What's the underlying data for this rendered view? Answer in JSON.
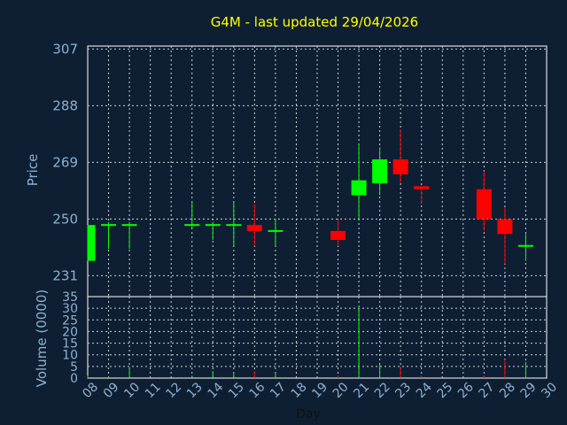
{
  "chart_data": {
    "type": "candlestick",
    "title": "G4M - last updated 29/04/2026",
    "xlabel": "Day",
    "ylabel_price": "Price",
    "ylabel_volume": "Volume (0000)",
    "x_ticks": [
      "08",
      "09",
      "10",
      "11",
      "12",
      "13",
      "14",
      "15",
      "16",
      "17",
      "18",
      "19",
      "20",
      "21",
      "22",
      "23",
      "24",
      "25",
      "26",
      "27",
      "28",
      "29",
      "30"
    ],
    "price_ticks": [
      "231",
      "250",
      "269",
      "288",
      "307"
    ],
    "price_range": [
      224,
      308
    ],
    "volume_ticks": [
      "0",
      "5",
      "10",
      "15",
      "20",
      "25",
      "30",
      "35"
    ],
    "volume_range": [
      0,
      35
    ],
    "grid": true,
    "candles": [
      {
        "day": "08",
        "open": 236,
        "close": 248,
        "high": 248,
        "low": 236,
        "volume": 1
      },
      {
        "day": "09",
        "open": 248,
        "close": 248,
        "high": 249,
        "low": 240,
        "volume": 0.5
      },
      {
        "day": "10",
        "open": 248,
        "close": 248,
        "high": 249,
        "low": 240,
        "volume": 4
      },
      {
        "day": "13",
        "open": 248,
        "close": 248,
        "high": 256,
        "low": 247,
        "volume": 1
      },
      {
        "day": "14",
        "open": 248,
        "close": 248,
        "high": 249,
        "low": 243,
        "volume": 3
      },
      {
        "day": "15",
        "open": 248,
        "close": 248,
        "high": 256,
        "low": 241,
        "volume": 2
      },
      {
        "day": "16",
        "open": 248,
        "close": 246,
        "high": 255,
        "low": 241,
        "volume": 3
      },
      {
        "day": "17",
        "open": 246,
        "close": 246,
        "high": 250,
        "low": 241,
        "volume": 2
      },
      {
        "day": "20",
        "open": 246,
        "close": 243,
        "high": 250,
        "low": 241,
        "volume": 1
      },
      {
        "day": "21",
        "open": 258,
        "close": 263,
        "high": 275,
        "low": 250,
        "volume": 30
      },
      {
        "day": "22",
        "open": 262,
        "close": 270,
        "high": 274,
        "low": 258,
        "volume": 6
      },
      {
        "day": "23",
        "open": 270,
        "close": 265,
        "high": 280,
        "low": 262,
        "volume": 5
      },
      {
        "day": "24",
        "open": 261,
        "close": 260,
        "high": 261,
        "low": 255,
        "volume": 1
      },
      {
        "day": "27",
        "open": 260,
        "close": 250,
        "high": 266,
        "low": 246,
        "volume": 1
      },
      {
        "day": "28",
        "open": 250,
        "close": 245,
        "high": 254,
        "low": 235,
        "volume": 8
      },
      {
        "day": "29",
        "open": 241,
        "close": 241,
        "high": 245,
        "low": 236,
        "volume": 7
      }
    ]
  }
}
